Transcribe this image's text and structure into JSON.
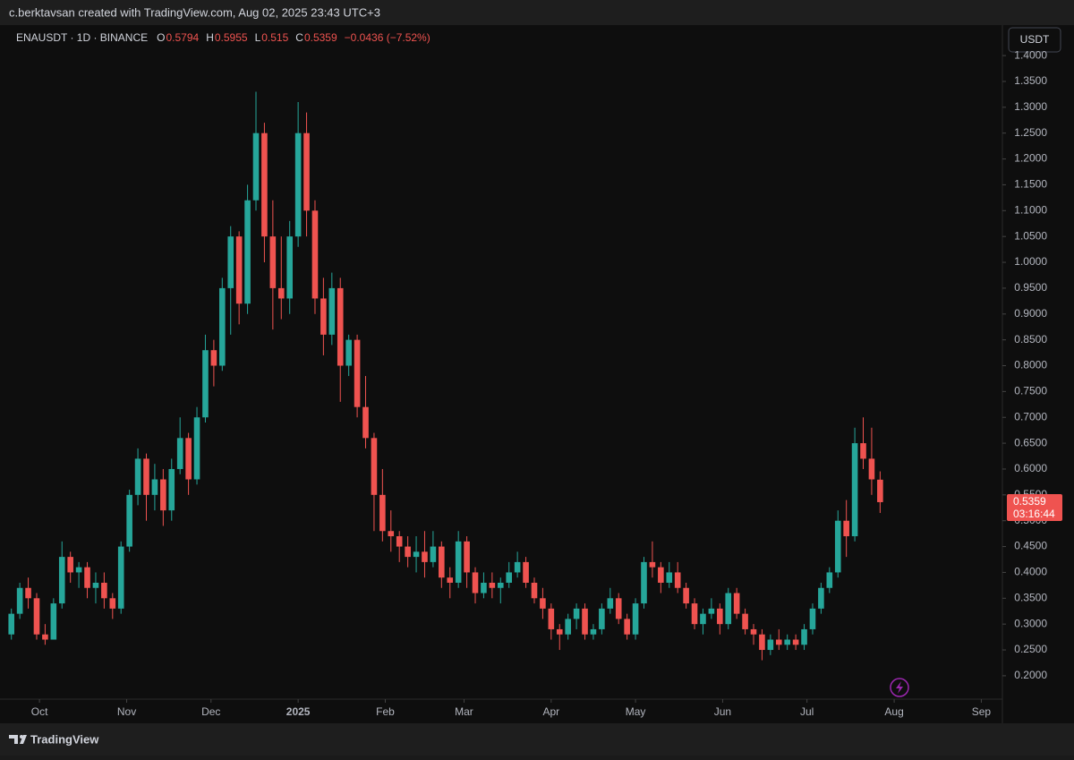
{
  "watermark": "c.berktavsan created with TradingView.com, Aug 02, 2025 23:43 UTC+3",
  "brand": "TradingView",
  "chart_data": {
    "type": "candlestick",
    "symbol": "ENAUSDT · 1D · BINANCE",
    "ohlc_keys": [
      "O",
      "H",
      "L",
      "C"
    ],
    "change": "−0.0436 (−7.52%)",
    "currency": "USDT",
    "countdown": "03:16:44",
    "up_color": "#26a69a",
    "down_color": "#ef5350",
    "candles": [
      [
        0.28,
        0.33,
        0.27,
        0.32
      ],
      [
        0.32,
        0.38,
        0.31,
        0.37
      ],
      [
        0.37,
        0.39,
        0.33,
        0.35
      ],
      [
        0.35,
        0.36,
        0.27,
        0.28
      ],
      [
        0.28,
        0.3,
        0.26,
        0.27
      ],
      [
        0.27,
        0.35,
        0.27,
        0.34
      ],
      [
        0.34,
        0.46,
        0.33,
        0.43
      ],
      [
        0.43,
        0.44,
        0.38,
        0.4
      ],
      [
        0.4,
        0.42,
        0.37,
        0.41
      ],
      [
        0.41,
        0.42,
        0.35,
        0.37
      ],
      [
        0.37,
        0.4,
        0.34,
        0.38
      ],
      [
        0.38,
        0.4,
        0.33,
        0.35
      ],
      [
        0.35,
        0.36,
        0.31,
        0.33
      ],
      [
        0.33,
        0.46,
        0.32,
        0.45
      ],
      [
        0.45,
        0.56,
        0.44,
        0.55
      ],
      [
        0.55,
        0.64,
        0.53,
        0.62
      ],
      [
        0.62,
        0.63,
        0.5,
        0.55
      ],
      [
        0.55,
        0.61,
        0.52,
        0.58
      ],
      [
        0.58,
        0.6,
        0.49,
        0.52
      ],
      [
        0.52,
        0.62,
        0.5,
        0.6
      ],
      [
        0.6,
        0.7,
        0.59,
        0.66
      ],
      [
        0.66,
        0.67,
        0.55,
        0.58
      ],
      [
        0.58,
        0.72,
        0.57,
        0.7
      ],
      [
        0.7,
        0.86,
        0.69,
        0.83
      ],
      [
        0.83,
        0.85,
        0.76,
        0.8
      ],
      [
        0.8,
        0.97,
        0.79,
        0.95
      ],
      [
        0.95,
        1.07,
        0.86,
        1.05
      ],
      [
        1.05,
        1.06,
        0.88,
        0.92
      ],
      [
        0.92,
        1.15,
        0.9,
        1.12
      ],
      [
        1.12,
        1.33,
        1.1,
        1.25
      ],
      [
        1.25,
        1.27,
        1.0,
        1.05
      ],
      [
        1.05,
        1.12,
        0.87,
        0.95
      ],
      [
        0.95,
        1.05,
        0.89,
        0.93
      ],
      [
        0.93,
        1.08,
        0.9,
        1.05
      ],
      [
        1.05,
        1.31,
        1.03,
        1.25
      ],
      [
        1.25,
        1.29,
        1.05,
        1.1
      ],
      [
        1.1,
        1.12,
        0.9,
        0.93
      ],
      [
        0.93,
        0.97,
        0.82,
        0.86
      ],
      [
        0.86,
        0.98,
        0.84,
        0.95
      ],
      [
        0.95,
        0.97,
        0.73,
        0.8
      ],
      [
        0.8,
        0.86,
        0.78,
        0.85
      ],
      [
        0.85,
        0.86,
        0.7,
        0.72
      ],
      [
        0.72,
        0.78,
        0.64,
        0.66
      ],
      [
        0.66,
        0.67,
        0.48,
        0.55
      ],
      [
        0.55,
        0.6,
        0.46,
        0.48
      ],
      [
        0.48,
        0.52,
        0.44,
        0.47
      ],
      [
        0.47,
        0.48,
        0.42,
        0.45
      ],
      [
        0.45,
        0.47,
        0.41,
        0.43
      ],
      [
        0.43,
        0.47,
        0.4,
        0.44
      ],
      [
        0.44,
        0.48,
        0.39,
        0.42
      ],
      [
        0.42,
        0.48,
        0.41,
        0.45
      ],
      [
        0.45,
        0.46,
        0.37,
        0.39
      ],
      [
        0.39,
        0.41,
        0.35,
        0.38
      ],
      [
        0.38,
        0.48,
        0.37,
        0.46
      ],
      [
        0.46,
        0.47,
        0.37,
        0.4
      ],
      [
        0.4,
        0.41,
        0.34,
        0.36
      ],
      [
        0.36,
        0.4,
        0.35,
        0.38
      ],
      [
        0.38,
        0.4,
        0.35,
        0.37
      ],
      [
        0.37,
        0.39,
        0.34,
        0.38
      ],
      [
        0.38,
        0.42,
        0.37,
        0.4
      ],
      [
        0.4,
        0.44,
        0.39,
        0.42
      ],
      [
        0.42,
        0.43,
        0.37,
        0.38
      ],
      [
        0.38,
        0.39,
        0.34,
        0.35
      ],
      [
        0.35,
        0.37,
        0.31,
        0.33
      ],
      [
        0.33,
        0.34,
        0.27,
        0.29
      ],
      [
        0.29,
        0.3,
        0.25,
        0.28
      ],
      [
        0.28,
        0.32,
        0.27,
        0.31
      ],
      [
        0.31,
        0.34,
        0.29,
        0.33
      ],
      [
        0.33,
        0.34,
        0.27,
        0.28
      ],
      [
        0.28,
        0.3,
        0.27,
        0.29
      ],
      [
        0.29,
        0.34,
        0.28,
        0.33
      ],
      [
        0.33,
        0.37,
        0.32,
        0.35
      ],
      [
        0.35,
        0.36,
        0.3,
        0.31
      ],
      [
        0.31,
        0.32,
        0.27,
        0.28
      ],
      [
        0.28,
        0.35,
        0.27,
        0.34
      ],
      [
        0.34,
        0.43,
        0.33,
        0.42
      ],
      [
        0.42,
        0.46,
        0.39,
        0.41
      ],
      [
        0.41,
        0.42,
        0.36,
        0.38
      ],
      [
        0.38,
        0.42,
        0.37,
        0.4
      ],
      [
        0.4,
        0.42,
        0.36,
        0.37
      ],
      [
        0.37,
        0.38,
        0.33,
        0.34
      ],
      [
        0.34,
        0.35,
        0.29,
        0.3
      ],
      [
        0.3,
        0.33,
        0.28,
        0.32
      ],
      [
        0.32,
        0.35,
        0.31,
        0.33
      ],
      [
        0.33,
        0.34,
        0.28,
        0.3
      ],
      [
        0.3,
        0.37,
        0.29,
        0.36
      ],
      [
        0.36,
        0.37,
        0.31,
        0.32
      ],
      [
        0.32,
        0.33,
        0.28,
        0.29
      ],
      [
        0.29,
        0.3,
        0.26,
        0.28
      ],
      [
        0.28,
        0.29,
        0.23,
        0.25
      ],
      [
        0.25,
        0.28,
        0.24,
        0.27
      ],
      [
        0.27,
        0.29,
        0.25,
        0.26
      ],
      [
        0.26,
        0.28,
        0.25,
        0.27
      ],
      [
        0.27,
        0.28,
        0.25,
        0.26
      ],
      [
        0.26,
        0.3,
        0.25,
        0.29
      ],
      [
        0.29,
        0.34,
        0.28,
        0.33
      ],
      [
        0.33,
        0.38,
        0.32,
        0.37
      ],
      [
        0.37,
        0.41,
        0.36,
        0.4
      ],
      [
        0.4,
        0.52,
        0.39,
        0.5
      ],
      [
        0.5,
        0.54,
        0.43,
        0.47
      ],
      [
        0.47,
        0.68,
        0.46,
        0.65
      ],
      [
        0.65,
        0.7,
        0.6,
        0.62
      ],
      [
        0.62,
        0.68,
        0.55,
        0.58
      ],
      [
        0.5794,
        0.5955,
        0.515,
        0.5359
      ]
    ],
    "xlim": [
      -0.5,
      117.5
    ],
    "xticks": [
      {
        "value": 3.33,
        "label": "Oct"
      },
      {
        "value": 13.67,
        "label": "Nov"
      },
      {
        "value": 23.67,
        "label": "Dec"
      },
      {
        "value": 34,
        "label": "2025"
      },
      {
        "value": 44.33,
        "label": "Feb"
      },
      {
        "value": 53.67,
        "label": "Mar"
      },
      {
        "value": 64,
        "label": "Apr"
      },
      {
        "value": 74,
        "label": "May"
      },
      {
        "value": 84.33,
        "label": "Jun"
      },
      {
        "value": 94.33,
        "label": "Jul"
      },
      {
        "value": 104.67,
        "label": "Aug"
      },
      {
        "value": 115,
        "label": "Sep"
      }
    ],
    "ylim": [
      0.16,
      1.44
    ],
    "yticks": [
      {
        "value": 0.2,
        "label": "0.2000"
      },
      {
        "value": 0.25,
        "label": "0.2500"
      },
      {
        "value": 0.3,
        "label": "0.3000"
      },
      {
        "value": 0.35,
        "label": "0.3500"
      },
      {
        "value": 0.4,
        "label": "0.4000"
      },
      {
        "value": 0.45,
        "label": "0.4500"
      },
      {
        "value": 0.5,
        "label": "0.5000"
      },
      {
        "value": 0.55,
        "label": "0.5500"
      },
      {
        "value": 0.6,
        "label": "0.6000"
      },
      {
        "value": 0.65,
        "label": "0.6500"
      },
      {
        "value": 0.7,
        "label": "0.7000"
      },
      {
        "value": 0.75,
        "label": "0.7500"
      },
      {
        "value": 0.8,
        "label": "0.8000"
      },
      {
        "value": 0.85,
        "label": "0.8500"
      },
      {
        "value": 0.9,
        "label": "0.9000"
      },
      {
        "value": 0.95,
        "label": "0.9500"
      },
      {
        "value": 1.0,
        "label": "1.0000"
      },
      {
        "value": 1.05,
        "label": "1.0500"
      },
      {
        "value": 1.1,
        "label": "1.1000"
      },
      {
        "value": 1.15,
        "label": "1.1500"
      },
      {
        "value": 1.2,
        "label": "1.2000"
      },
      {
        "value": 1.25,
        "label": "1.2500"
      },
      {
        "value": 1.3,
        "label": "1.3000"
      },
      {
        "value": 1.35,
        "label": "1.3500"
      },
      {
        "value": 1.4,
        "label": "1.4000"
      }
    ]
  }
}
